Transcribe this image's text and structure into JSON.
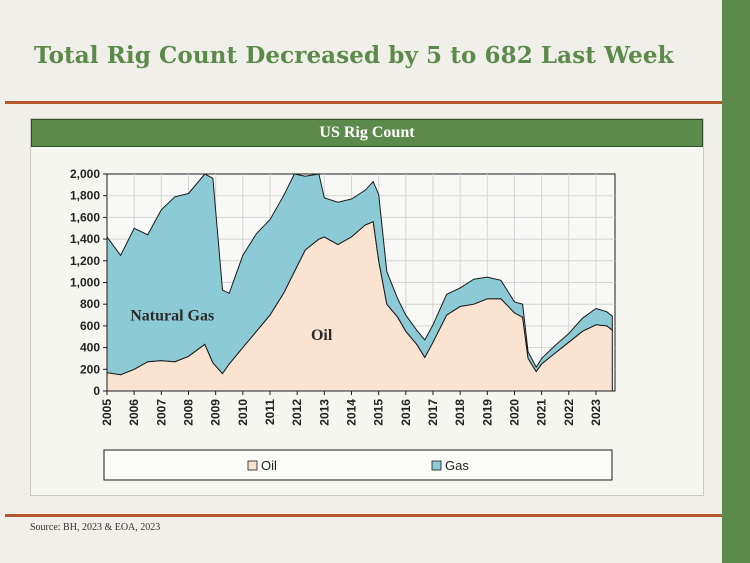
{
  "slide": {
    "title": "Total Rig Count Decreased by 5 to 682 Last Week",
    "source": "Source: BH, 2023 & EOA, 2023"
  },
  "colors": {
    "accent": "#5b8a4a",
    "rule": "#b5562b",
    "oil": "#fae3d0",
    "gas": "#8ccbd6",
    "outline": "#1a1a1a"
  },
  "chart_data": {
    "type": "area",
    "title": "US Rig Count",
    "ylim": [
      0,
      2000
    ],
    "xlim": [
      2005,
      2023.7
    ],
    "yticks": [
      "0",
      "200",
      "400",
      "600",
      "800",
      "1,000",
      "1,200",
      "1,400",
      "1,600",
      "1,800",
      "2,000"
    ],
    "xticks": [
      "2005",
      "2006",
      "2007",
      "2008",
      "2009",
      "2010",
      "2011",
      "2012",
      "2013",
      "2014",
      "2015",
      "2016",
      "2017",
      "2018",
      "2019",
      "2020",
      "2021",
      "2022",
      "2023"
    ],
    "grid": true,
    "legend": {
      "position": "bottom",
      "entries": [
        "Oil",
        "Gas"
      ]
    },
    "annotations": [
      {
        "text": "Natural Gas",
        "x": 2007.4,
        "y": 650
      },
      {
        "text": "Oil",
        "x": 2012.9,
        "y": 470
      }
    ],
    "x": [
      2005.0,
      2005.5,
      2006.0,
      2006.5,
      2007.0,
      2007.5,
      2008.0,
      2008.6,
      2008.9,
      2009.25,
      2009.5,
      2010.0,
      2010.5,
      2011.0,
      2011.5,
      2011.9,
      2012.3,
      2012.8,
      2013.0,
      2013.5,
      2014.0,
      2014.5,
      2014.8,
      2015.0,
      2015.3,
      2015.7,
      2016.0,
      2016.4,
      2016.7,
      2017.0,
      2017.5,
      2018.0,
      2018.5,
      2019.0,
      2019.5,
      2020.0,
      2020.3,
      2020.5,
      2020.8,
      2021.0,
      2021.5,
      2022.0,
      2022.5,
      2023.0,
      2023.4,
      2023.6
    ],
    "series": [
      {
        "name": "Oil",
        "values": [
          170,
          150,
          200,
          270,
          280,
          270,
          320,
          430,
          260,
          160,
          250,
          400,
          550,
          700,
          900,
          1100,
          1300,
          1400,
          1420,
          1350,
          1420,
          1530,
          1560,
          1200,
          800,
          680,
          550,
          430,
          310,
          450,
          700,
          780,
          800,
          850,
          850,
          720,
          680,
          300,
          180,
          250,
          350,
          450,
          550,
          610,
          600,
          560
        ]
      },
      {
        "name": "Gas",
        "values": [
          1250,
          1100,
          1300,
          1170,
          1390,
          1520,
          1500,
          1570,
          1700,
          770,
          650,
          850,
          900,
          880,
          900,
          900,
          680,
          600,
          360,
          390,
          350,
          320,
          370,
          610,
          300,
          170,
          150,
          130,
          160,
          160,
          190,
          170,
          230,
          200,
          170,
          100,
          120,
          60,
          40,
          50,
          70,
          80,
          120,
          150,
          130,
          130
        ]
      }
    ]
  }
}
